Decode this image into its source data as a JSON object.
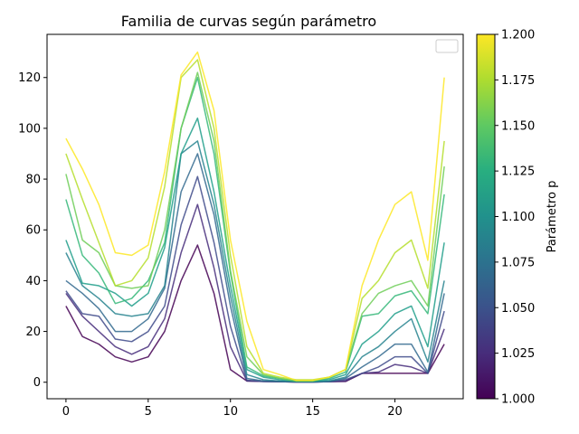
{
  "chart_data": {
    "type": "line",
    "title": "Familia de curvas según parámetro",
    "xlabel": "",
    "ylabel": "",
    "xlim": [
      -1.15,
      24.15
    ],
    "ylim": [
      -6.5,
      137
    ],
    "xticks": [
      0,
      5,
      10,
      15,
      20
    ],
    "yticks": [
      0,
      20,
      40,
      60,
      80,
      100,
      120
    ],
    "x": [
      0,
      1,
      2,
      3,
      4,
      5,
      6,
      7,
      8,
      9,
      10,
      11,
      12,
      13,
      14,
      15,
      16,
      17,
      18,
      19,
      20,
      21,
      22,
      23
    ],
    "legend": {
      "visible": true,
      "entries": [],
      "placement": "upper right"
    },
    "colorbar": {
      "label": "Parámetro p",
      "colormap": "viridis",
      "range": [
        1.0,
        1.2
      ],
      "ticks": [
        "1.000",
        "1.025",
        "1.050",
        "1.075",
        "1.100",
        "1.125",
        "1.150",
        "1.175",
        "1.200"
      ]
    },
    "series": [
      {
        "param": 1.0,
        "color": "#440154",
        "values": [
          30,
          18,
          15,
          10,
          8,
          10,
          20,
          40,
          54,
          35,
          5,
          0.5,
          0.3,
          0.2,
          0.1,
          0.1,
          0.2,
          0.3,
          3.5,
          3.5,
          3.5,
          3.5,
          3.5,
          15
        ]
      },
      {
        "param": 1.0222,
        "color": "#472d7b",
        "values": [
          35,
          26,
          20,
          14,
          11,
          14,
          25,
          51,
          70,
          45,
          14,
          0.5,
          0.3,
          0.2,
          0.1,
          0.1,
          0.2,
          0.5,
          3.5,
          4,
          7,
          6,
          3.5,
          21
        ]
      },
      {
        "param": 1.0444,
        "color": "#3e4a89",
        "values": [
          36,
          27,
          26,
          17,
          16,
          20,
          30,
          62,
          81,
          55,
          22,
          0.8,
          0.3,
          0.2,
          0.1,
          0.1,
          0.2,
          1,
          3.5,
          6,
          10,
          10,
          3.5,
          28
        ]
      },
      {
        "param": 1.0667,
        "color": "#31688e",
        "values": [
          40,
          35,
          29,
          20,
          20,
          25,
          37,
          75,
          90,
          66,
          30,
          1.5,
          0.5,
          0.3,
          0.2,
          0.1,
          0.3,
          1.5,
          6,
          10,
          15,
          15,
          4,
          35
        ]
      },
      {
        "param": 1.0889,
        "color": "#26828e",
        "values": [
          51,
          38,
          33,
          27,
          26,
          27,
          38,
          90,
          95,
          70,
          34,
          3,
          1,
          0.5,
          0.2,
          0.2,
          0.5,
          2,
          10,
          14,
          20,
          25,
          8,
          40
        ]
      },
      {
        "param": 1.1111,
        "color": "#1f9e89",
        "values": [
          56,
          39,
          38,
          35,
          30,
          35,
          53,
          90,
          104,
          75,
          38,
          5,
          2,
          1,
          0.5,
          0.5,
          1,
          3,
          15,
          20,
          27,
          30,
          14,
          55
        ]
      },
      {
        "param": 1.1333,
        "color": "#35b779",
        "values": [
          72,
          50,
          43,
          31,
          33,
          40,
          55,
          100,
          120,
          90,
          43,
          6,
          2.5,
          1.5,
          0.5,
          0.5,
          1.5,
          4,
          26,
          27,
          34,
          36,
          27,
          74
        ]
      },
      {
        "param": 1.1556,
        "color": "#6ece58",
        "values": [
          82,
          56,
          51,
          38,
          37,
          38,
          60,
          100,
          122,
          95,
          44,
          10,
          3,
          1.5,
          0.5,
          0.5,
          2,
          5,
          27,
          35,
          38,
          40,
          30,
          85
        ]
      },
      {
        "param": 1.1778,
        "color": "#b5de2b",
        "values": [
          90,
          72,
          55,
          38,
          40,
          49,
          77,
          120,
          127,
          100,
          50,
          14,
          3.5,
          2,
          1,
          1,
          2,
          5,
          33,
          40,
          51,
          56,
          37,
          95
        ]
      },
      {
        "param": 1.2,
        "color": "#fde725",
        "values": [
          96,
          84,
          70,
          51,
          50,
          54,
          83,
          121,
          130,
          107,
          56,
          24,
          5,
          3,
          0.7,
          0.7,
          2,
          5,
          38,
          56,
          70,
          75,
          48,
          120
        ]
      }
    ]
  }
}
